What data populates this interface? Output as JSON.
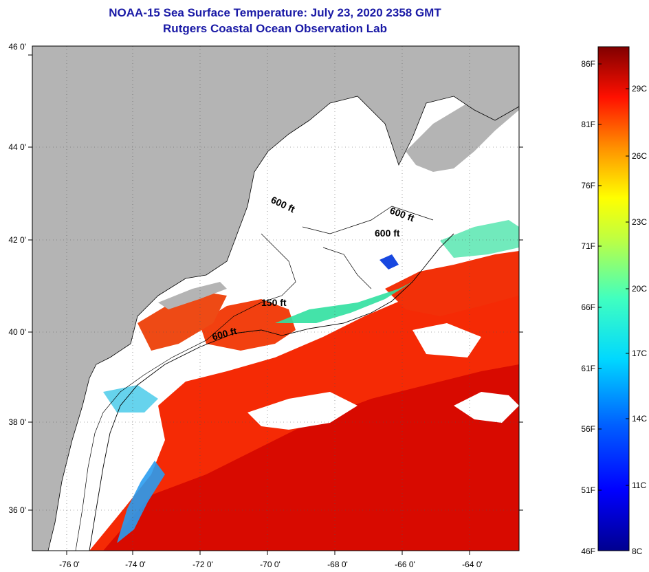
{
  "title": {
    "line1": "NOAA-15 Sea Surface Temperature:  July 23, 2020 2358 GMT",
    "line2": "Rutgers Coastal Ocean Observation Lab"
  },
  "map": {
    "lat_labels": [
      "46 0'",
      "44 0'",
      "42 0'",
      "40 0'",
      "38 0'",
      "36 0'"
    ],
    "lon_labels": [
      "-76 0'",
      "-74 0'",
      "-72 0'",
      "-70 0'",
      "-68 0'",
      "-66 0'",
      "-64 0'"
    ],
    "contour_labels": [
      "600 ft",
      "600 ft",
      "600 ft",
      "150 ft",
      "600 ft"
    ],
    "colors": {
      "land": "#b4b4b4",
      "cloud": "#ffffff",
      "warm": "#ff2a00",
      "hot": "#d40000",
      "cool": "#00d0ff",
      "cold": "#0040ff",
      "mid": "#ffd000"
    }
  },
  "colorbar": {
    "fahrenheit": [
      "86F",
      "81F",
      "76F",
      "71F",
      "66F",
      "61F",
      "56F",
      "51F",
      "46F"
    ],
    "celsius": [
      "29C",
      "26C",
      "23C",
      "20C",
      "17C",
      "14C",
      "11C",
      "8C"
    ]
  }
}
